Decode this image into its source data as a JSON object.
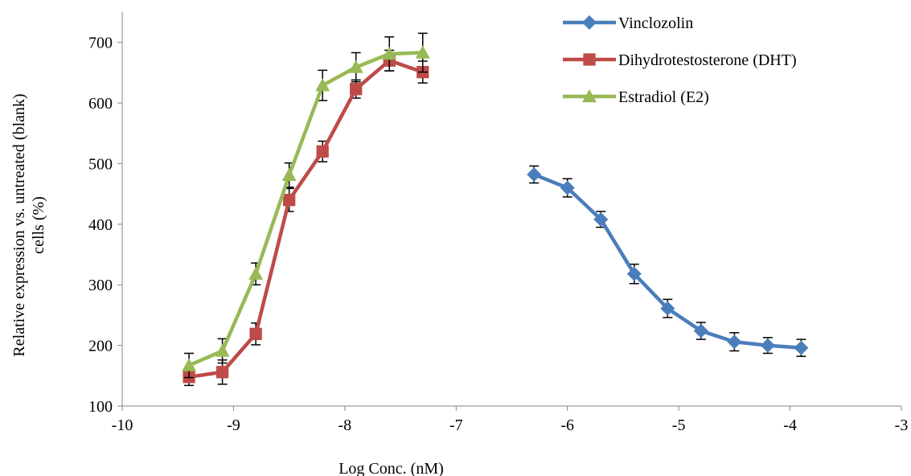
{
  "chart_data": {
    "type": "line",
    "title": "",
    "xlabel": "Log Conc. (nM)",
    "ylabel_lines": [
      "Relative expression vs. untreated (blank)",
      "cells (%)"
    ],
    "xlim": [
      -10,
      -3
    ],
    "ylim": [
      100,
      750
    ],
    "x_ticks": [
      -10,
      -9,
      -8,
      -7,
      -6,
      -5,
      -4,
      -3
    ],
    "x_tick_labels": [
      "-10",
      "-9",
      "-8",
      "-7",
      "-6",
      "-5",
      "-4",
      "-3"
    ],
    "y_ticks": [
      100,
      200,
      300,
      400,
      500,
      600,
      700
    ],
    "y_tick_labels": [
      "100",
      "200",
      "300",
      "400",
      "500",
      "600",
      "700"
    ],
    "grid": false,
    "legend_position": "top-right",
    "series": [
      {
        "name": "Vinclozolin",
        "color": "#4a7ebb",
        "marker": "diamond",
        "x": [
          -6.3,
          -6.0,
          -5.7,
          -5.4,
          -5.1,
          -4.8,
          -4.5,
          -4.2,
          -3.9
        ],
        "values": [
          482,
          460,
          408,
          318,
          261,
          224,
          206,
          200,
          196
        ],
        "errors": [
          14,
          15,
          13,
          16,
          15,
          14,
          15,
          13,
          14
        ]
      },
      {
        "name": "Dihydrotestosterone (DHT)",
        "color": "#be4b48",
        "marker": "square",
        "x": [
          -9.4,
          -9.1,
          -8.8,
          -8.5,
          -8.2,
          -7.9,
          -7.6,
          -7.3
        ],
        "values": [
          148,
          156,
          219,
          440,
          520,
          623,
          670,
          651
        ],
        "errors": [
          14,
          20,
          18,
          19,
          17,
          15,
          17,
          18
        ]
      },
      {
        "name": "Estradiol (E2)",
        "color": "#98b954",
        "marker": "triangle",
        "x": [
          -9.4,
          -9.1,
          -8.8,
          -8.5,
          -8.2,
          -7.9,
          -7.6,
          -7.3
        ],
        "values": [
          167,
          191,
          318,
          481,
          629,
          659,
          681,
          683
        ],
        "errors": [
          20,
          20,
          18,
          20,
          25,
          24,
          28,
          32
        ]
      }
    ]
  }
}
